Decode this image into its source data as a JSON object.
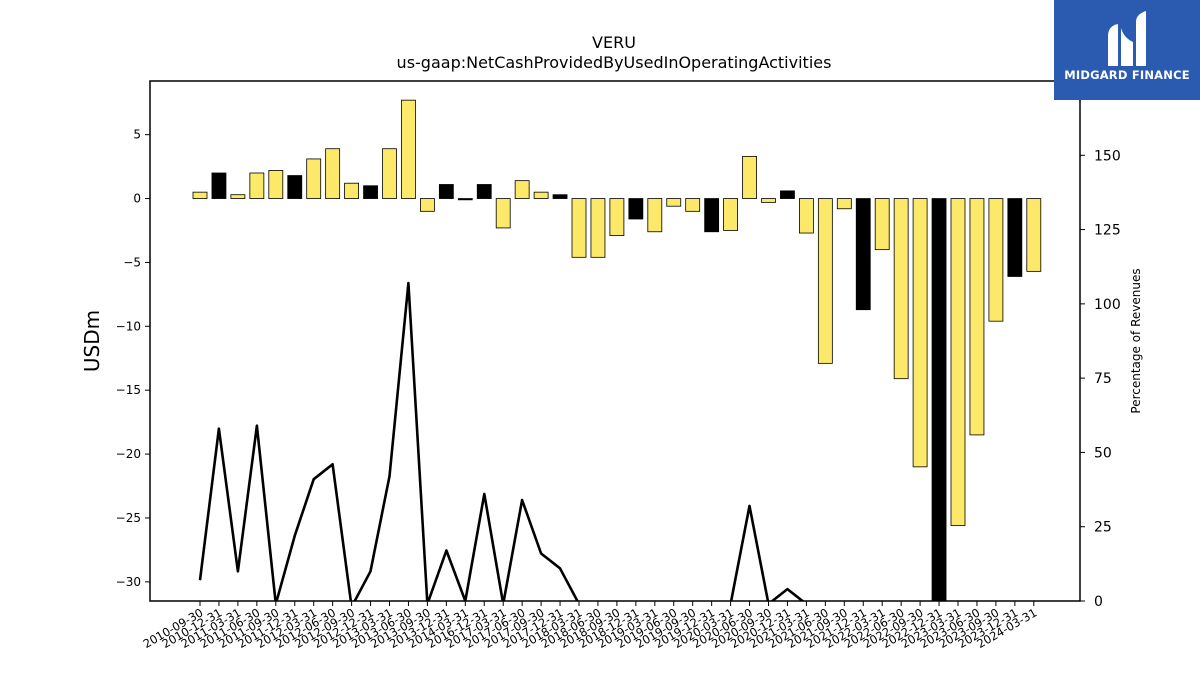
{
  "chart_data": {
    "type": "bar",
    "title": "VERU",
    "subtitle": "us-gaap:NetCashProvidedByUsedInOperatingActivities",
    "ylabel": "USDm",
    "y2label": "Percentage of Revenues",
    "ylim": [
      -31.5,
      9.2
    ],
    "y2lim": [
      0,
      175
    ],
    "yticks": [
      5,
      0,
      -5,
      -10,
      -15,
      -20,
      -25,
      -30
    ],
    "y2ticks": [
      0,
      25,
      50,
      75,
      100,
      125,
      150,
      175
    ],
    "categories": [
      "2010-09-30",
      "2010-12-31",
      "2011-03-31",
      "2011-06-30",
      "2011-09-30",
      "2011-12-31",
      "2012-03-31",
      "2012-06-30",
      "2012-09-30",
      "2012-12-31",
      "2013-03-31",
      "2013-06-30",
      "2013-09-30",
      "2013-12-31",
      "2014-03-31",
      "2016-12-31",
      "2017-03-31",
      "2017-06-30",
      "2017-09-30",
      "2017-12-31",
      "2018-03-31",
      "2018-06-30",
      "2018-09-30",
      "2018-12-31",
      "2019-03-31",
      "2019-06-30",
      "2019-09-30",
      "2019-12-31",
      "2020-03-31",
      "2020-06-30",
      "2020-09-30",
      "2020-12-31",
      "2021-03-31",
      "2021-06-30",
      "2021-09-30",
      "2021-12-31",
      "2022-03-31",
      "2022-06-30",
      "2022-09-30",
      "2022-12-31",
      "2023-03-31",
      "2023-06-30",
      "2023-09-30",
      "2023-12-31",
      "2024-03-31"
    ],
    "series": [
      {
        "type": "bar",
        "values": [
          0.5,
          2.0,
          0.3,
          2.0,
          2.2,
          1.8,
          3.1,
          3.9,
          1.2,
          1.0,
          3.9,
          7.7,
          -1.0,
          1.1,
          -0.1,
          1.1,
          -2.3,
          1.4,
          0.5,
          0.3,
          -4.6,
          -4.6,
          -2.9,
          -1.6,
          -2.6,
          -0.6,
          -1.0,
          -2.6,
          -2.5,
          3.3,
          -0.3,
          0.6,
          -2.7,
          -12.9,
          -0.8,
          -8.7,
          -4.0,
          -14.1,
          -21.0,
          -32.0,
          -25.6,
          -18.5,
          -9.6,
          -6.1,
          -5.7
        ],
        "colors": [
          "#fce96a",
          "#000000",
          "#fce96a",
          "#fce96a",
          "#fce96a",
          "#000000",
          "#fce96a",
          "#fce96a",
          "#fce96a",
          "#000000",
          "#fce96a",
          "#fce96a",
          "#fce96a",
          "#000000",
          "#000000",
          "#000000",
          "#fce96a",
          "#fce96a",
          "#fce96a",
          "#000000",
          "#fce96a",
          "#fce96a",
          "#fce96a",
          "#000000",
          "#fce96a",
          "#fce96a",
          "#fce96a",
          "#000000",
          "#fce96a",
          "#fce96a",
          "#fce96a",
          "#000000",
          "#fce96a",
          "#fce96a",
          "#fce96a",
          "#000000",
          "#fce96a",
          "#fce96a",
          "#fce96a",
          "#000000",
          "#fce96a",
          "#fce96a",
          "#fce96a",
          "#000000",
          "#fce96a"
        ]
      },
      {
        "type": "line",
        "axis": "right",
        "color": "#000000",
        "values": [
          7,
          58,
          10,
          59,
          -1,
          22,
          41,
          46,
          -2,
          10,
          42,
          107,
          -1,
          17,
          0,
          36,
          -1,
          34,
          16,
          11,
          -1,
          -1,
          -1,
          -1,
          -1,
          -1,
          -1,
          -1,
          -1,
          32,
          -1,
          4,
          -1,
          -1,
          -1,
          -1,
          -1,
          -1,
          -1,
          -1,
          -1,
          -1,
          -1,
          -1,
          -1
        ]
      }
    ],
    "colors": {
      "bar_yellow": "#fce96a",
      "bar_black": "#000000",
      "line": "#000000"
    }
  },
  "logo": {
    "text": "MIDGARD FINANCE"
  }
}
